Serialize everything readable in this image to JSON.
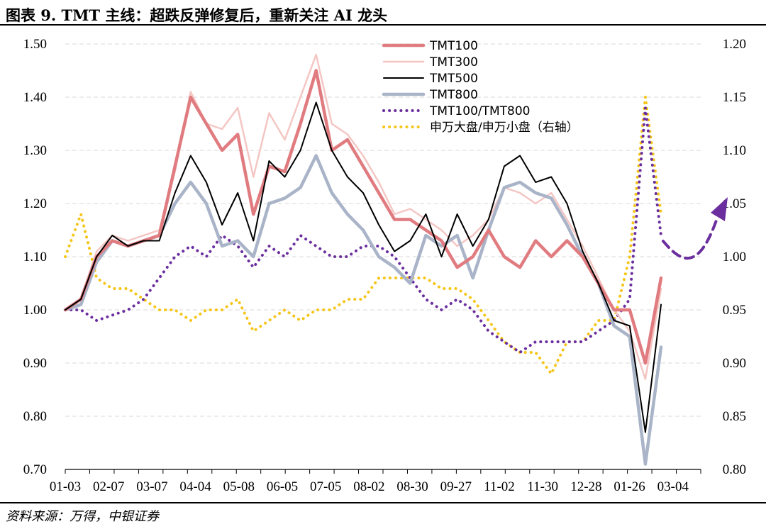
{
  "title": "图表 9. TMT 主线：超跌反弹修复后，重新关注 AI 龙头",
  "source": "资料来源：万得，中银证券",
  "chart_data": {
    "type": "line",
    "x_ticks": [
      "01-03",
      "02-07",
      "03-07",
      "04-04",
      "05-08",
      "06-05",
      "07-05",
      "08-02",
      "08-30",
      "09-27",
      "11-02",
      "11-30",
      "12-28",
      "01-26",
      "03-04"
    ],
    "ylim_left": [
      0.7,
      1.5
    ],
    "yticks_left": [
      "1.50",
      "1.40",
      "1.30",
      "1.20",
      "1.10",
      "1.00",
      "0.90",
      "0.80",
      "0.70"
    ],
    "ylim_right": [
      0.8,
      1.2
    ],
    "yticks_right": [
      "1.20",
      "1.15",
      "1.10",
      "1.05",
      "1.00",
      "0.95",
      "0.90",
      "0.85",
      "0.80"
    ],
    "grid": "horizontal dashed",
    "legend_position": "top-center",
    "series": [
      {
        "name": "TMT100",
        "axis": "left",
        "color": "#E07B80",
        "style": "solid",
        "width": 4.5,
        "values": [
          1.0,
          1.02,
          1.1,
          1.13,
          1.12,
          1.13,
          1.14,
          1.27,
          1.4,
          1.35,
          1.3,
          1.33,
          1.18,
          1.27,
          1.26,
          1.35,
          1.45,
          1.3,
          1.32,
          1.27,
          1.22,
          1.17,
          1.17,
          1.15,
          1.13,
          1.08,
          1.1,
          1.15,
          1.1,
          1.08,
          1.13,
          1.1,
          1.13,
          1.1,
          1.05,
          1.0,
          1.0,
          0.9,
          1.06
        ]
      },
      {
        "name": "TMT300",
        "axis": "left",
        "color": "#F4C6C3",
        "style": "solid",
        "width": 2.5,
        "values": [
          1.0,
          1.02,
          1.11,
          1.14,
          1.13,
          1.14,
          1.15,
          1.26,
          1.41,
          1.35,
          1.34,
          1.38,
          1.25,
          1.37,
          1.32,
          1.4,
          1.48,
          1.35,
          1.33,
          1.29,
          1.24,
          1.18,
          1.19,
          1.17,
          1.15,
          1.12,
          1.14,
          1.17,
          1.23,
          1.22,
          1.2,
          1.22,
          1.17,
          1.12,
          1.06,
          1.0,
          0.96,
          0.87,
          1.04
        ]
      },
      {
        "name": "TMT500",
        "axis": "left",
        "color": "#000000",
        "style": "solid",
        "width": 2,
        "values": [
          1.0,
          1.02,
          1.1,
          1.14,
          1.12,
          1.13,
          1.13,
          1.22,
          1.29,
          1.24,
          1.16,
          1.22,
          1.13,
          1.28,
          1.25,
          1.3,
          1.39,
          1.3,
          1.25,
          1.22,
          1.16,
          1.11,
          1.13,
          1.18,
          1.1,
          1.18,
          1.12,
          1.17,
          1.27,
          1.29,
          1.24,
          1.25,
          1.2,
          1.11,
          1.05,
          0.98,
          0.97,
          0.77,
          1.01
        ]
      },
      {
        "name": "TMT800",
        "axis": "left",
        "color": "#A9B4C8",
        "style": "solid",
        "width": 4.5,
        "values": [
          1.0,
          1.01,
          1.09,
          1.13,
          1.12,
          1.13,
          1.14,
          1.2,
          1.24,
          1.2,
          1.12,
          1.13,
          1.1,
          1.2,
          1.21,
          1.23,
          1.29,
          1.22,
          1.18,
          1.15,
          1.1,
          1.08,
          1.05,
          1.14,
          1.12,
          1.14,
          1.06,
          1.15,
          1.23,
          1.24,
          1.22,
          1.21,
          1.16,
          1.1,
          1.05,
          0.97,
          0.95,
          0.71,
          0.93
        ]
      },
      {
        "name": "TMT100/TMT800",
        "axis": "right",
        "color": "#6B2E9E",
        "style": "dotted",
        "width": 4,
        "values": [
          0.95,
          0.95,
          0.94,
          0.945,
          0.95,
          0.96,
          0.98,
          1.0,
          1.01,
          1.0,
          1.02,
          1.01,
          0.99,
          1.01,
          1.0,
          1.02,
          1.01,
          1.0,
          1.0,
          1.01,
          1.01,
          1.0,
          0.98,
          0.96,
          0.95,
          0.96,
          0.95,
          0.93,
          0.92,
          0.91,
          0.92,
          0.92,
          0.92,
          0.92,
          0.93,
          0.94,
          0.96,
          1.14,
          1.02
        ]
      },
      {
        "name": "申万大盘/申万小盘（右轴）",
        "axis": "right",
        "color": "#F5C518",
        "style": "dotted",
        "width": 4,
        "values": [
          1.0,
          1.04,
          0.98,
          0.97,
          0.97,
          0.96,
          0.95,
          0.95,
          0.94,
          0.95,
          0.95,
          0.96,
          0.93,
          0.94,
          0.95,
          0.94,
          0.95,
          0.95,
          0.96,
          0.96,
          0.98,
          0.98,
          0.98,
          0.98,
          0.97,
          0.97,
          0.96,
          0.94,
          0.92,
          0.91,
          0.91,
          0.89,
          0.92,
          0.92,
          0.94,
          0.94,
          1.0,
          1.15,
          1.04
        ]
      }
    ]
  }
}
